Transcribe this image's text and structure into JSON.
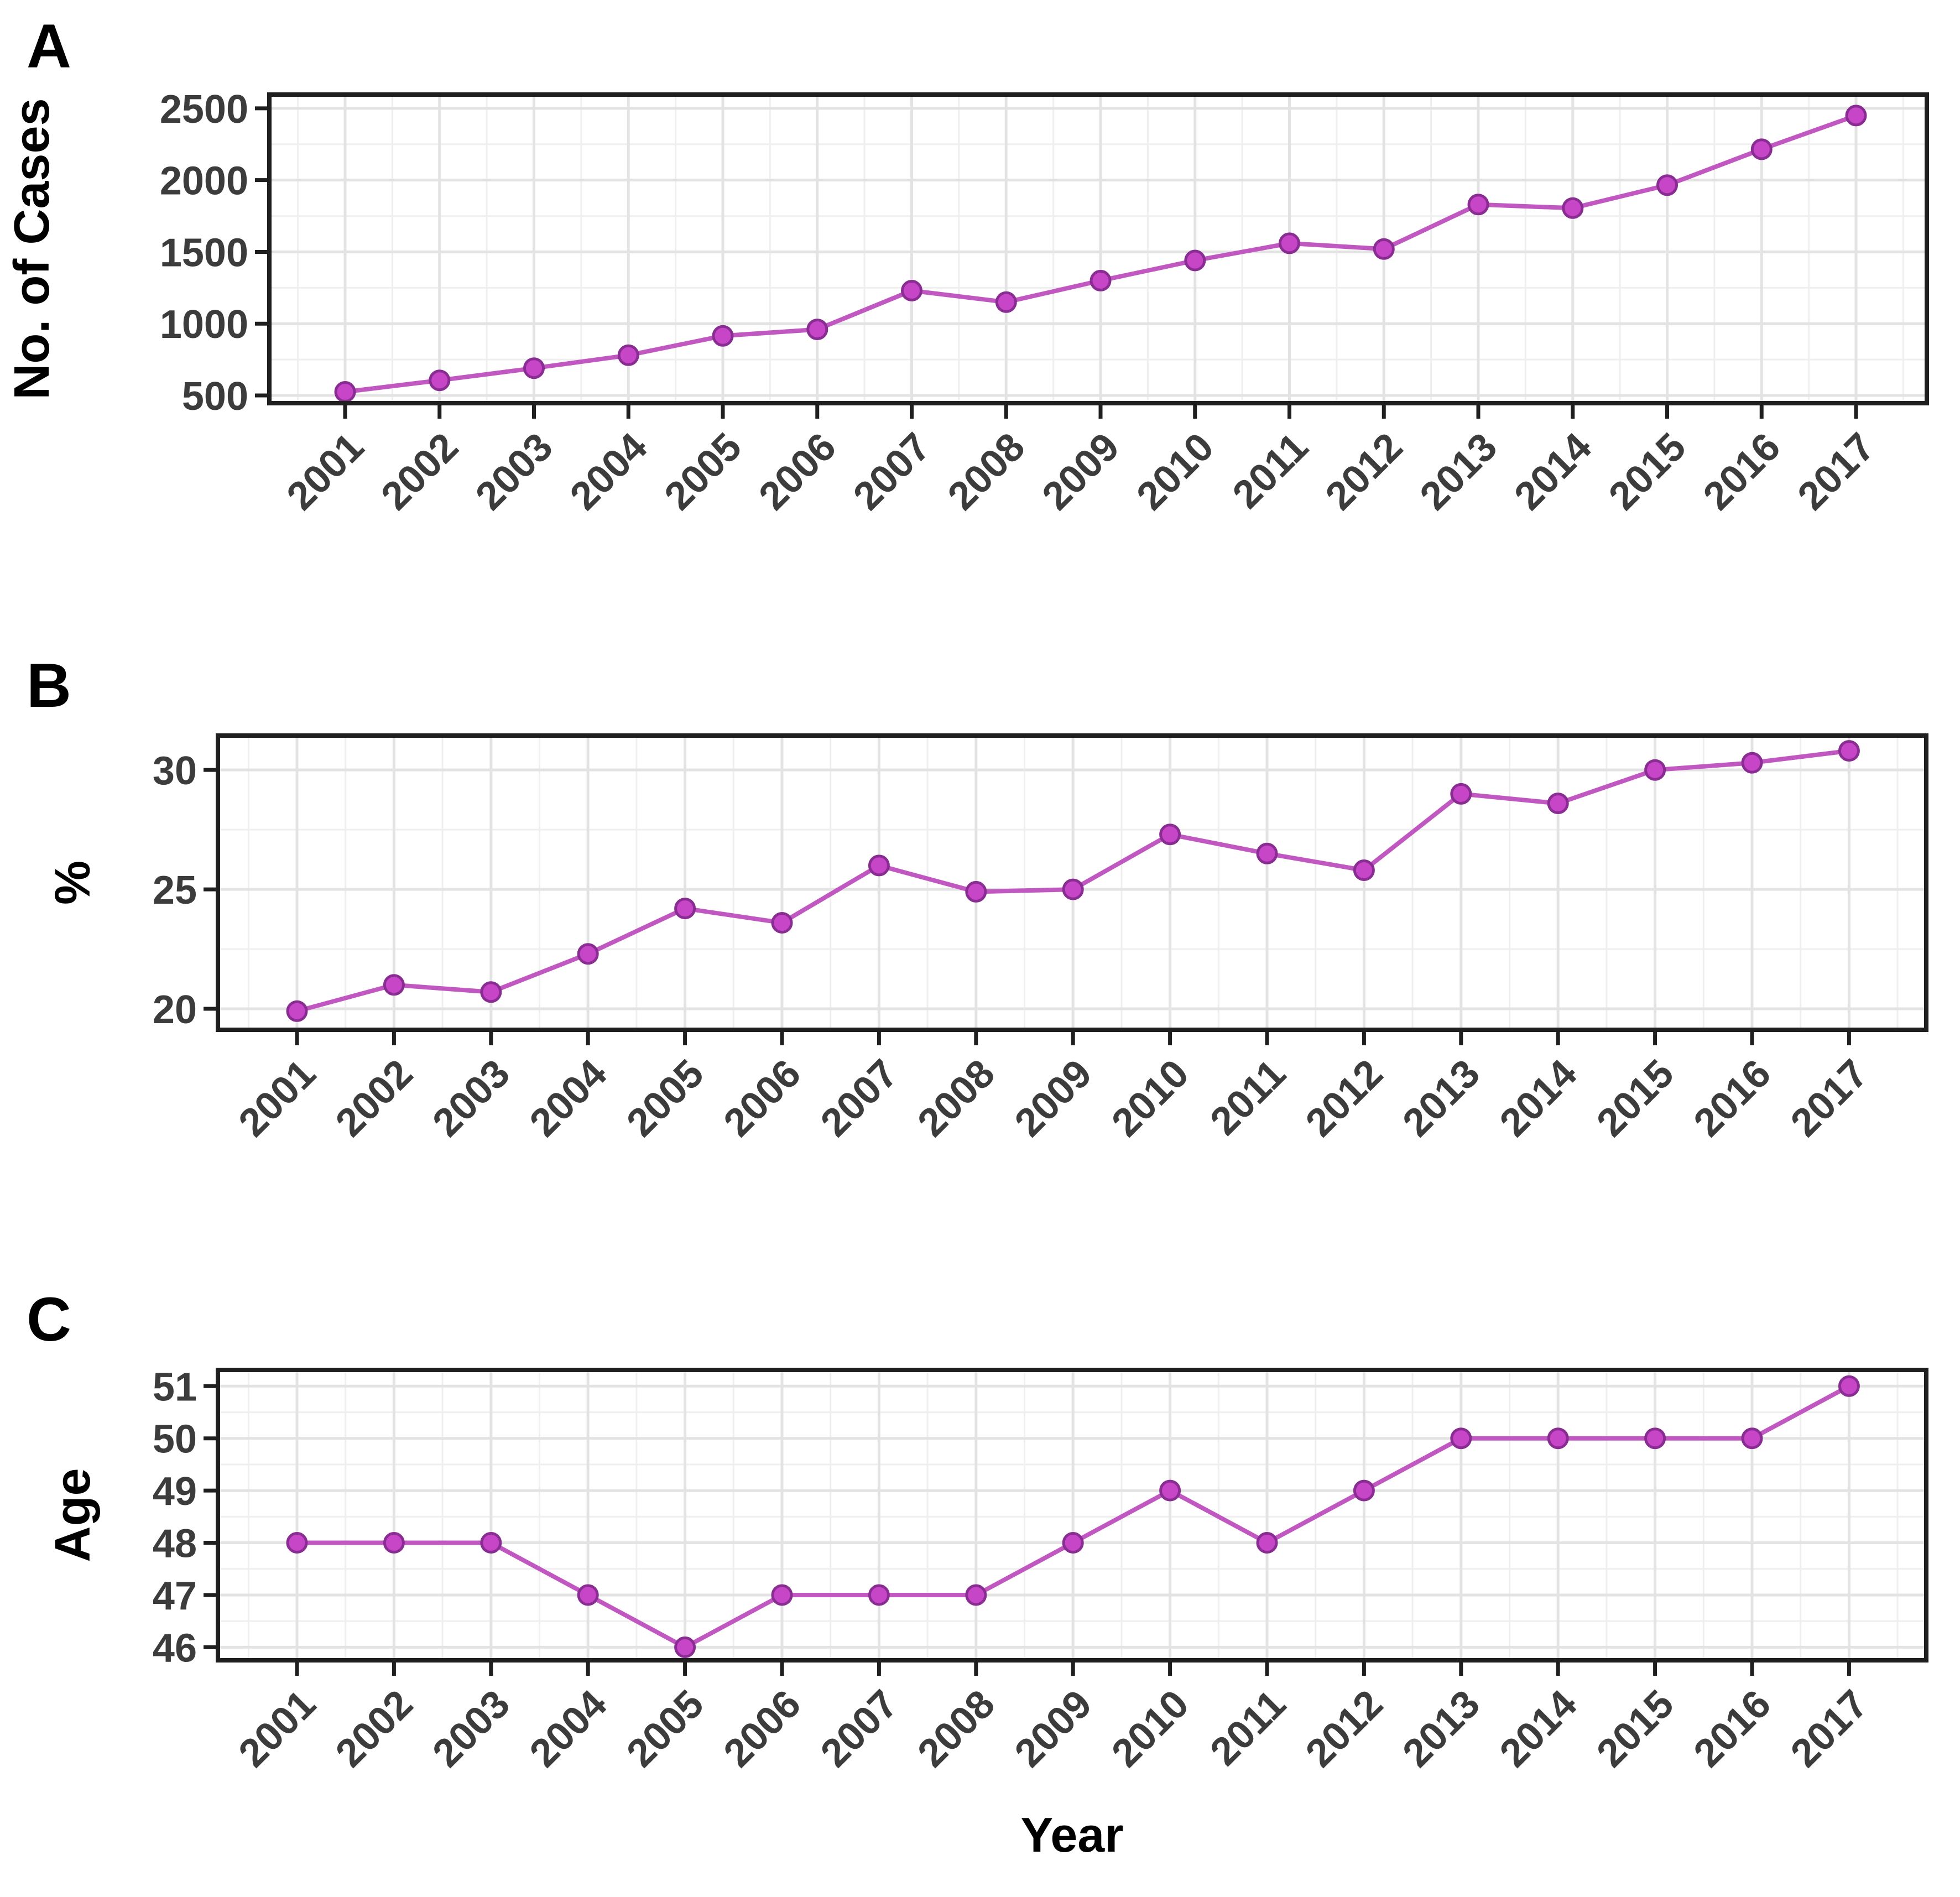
{
  "figure": {
    "xlabel": "Year",
    "years": [
      2001,
      2002,
      2003,
      2004,
      2005,
      2006,
      2007,
      2008,
      2009,
      2010,
      2011,
      2012,
      2013,
      2014,
      2015,
      2016,
      2017
    ]
  },
  "chart_data": [
    {
      "id": "A",
      "type": "line",
      "panel_label": "A",
      "title": "",
      "xlabel": "",
      "ylabel": "No. of Cases",
      "x": [
        2001,
        2002,
        2003,
        2004,
        2005,
        2006,
        2007,
        2008,
        2009,
        2010,
        2011,
        2012,
        2013,
        2014,
        2015,
        2016,
        2017
      ],
      "values": [
        525,
        605,
        690,
        780,
        915,
        960,
        1230,
        1150,
        1300,
        1440,
        1560,
        1520,
        1830,
        1805,
        1965,
        2215,
        2450
      ],
      "yticks": [
        500,
        1000,
        1500,
        2000,
        2500
      ],
      "ylim": [
        446,
        2596
      ],
      "grid": true,
      "legend_position": "none"
    },
    {
      "id": "B",
      "type": "line",
      "panel_label": "B",
      "title": "",
      "xlabel": "",
      "ylabel": "%",
      "x": [
        2001,
        2002,
        2003,
        2004,
        2005,
        2006,
        2007,
        2008,
        2009,
        2010,
        2011,
        2012,
        2013,
        2014,
        2015,
        2016,
        2017
      ],
      "values": [
        19.9,
        21.0,
        20.7,
        22.3,
        24.2,
        23.6,
        26.0,
        24.9,
        25.0,
        27.3,
        26.5,
        25.8,
        29.0,
        28.6,
        30.0,
        30.3,
        30.8
      ],
      "yticks": [
        20,
        25,
        30
      ],
      "ylim": [
        19.12,
        31.44
      ],
      "grid": true,
      "legend_position": "none"
    },
    {
      "id": "C",
      "type": "line",
      "panel_label": "C",
      "title": "",
      "xlabel": "Year",
      "ylabel": "Age",
      "x": [
        2001,
        2002,
        2003,
        2004,
        2005,
        2006,
        2007,
        2008,
        2009,
        2010,
        2011,
        2012,
        2013,
        2014,
        2015,
        2016,
        2017
      ],
      "values": [
        48,
        48,
        48,
        47,
        46,
        47,
        47,
        47,
        48,
        49,
        48,
        49,
        50,
        50,
        50,
        50,
        51
      ],
      "yticks": [
        46,
        47,
        48,
        49,
        50,
        51
      ],
      "ylim": [
        45.75,
        51.31
      ],
      "grid": true,
      "legend_position": "none"
    }
  ],
  "colors": {
    "background": "#ffffff",
    "series_line": "#c158c1",
    "marker_fill": "#c746c7",
    "marker_stroke": "#8a2d93",
    "grid_major": "#e3e3e3",
    "grid_minor": "#efefef",
    "panel_border": "#1f1f1f",
    "tick_mark": "#1f1f1f",
    "tick_label": "#3c3c3c",
    "axis_title": "#000000",
    "panel_letter": "#000000"
  }
}
